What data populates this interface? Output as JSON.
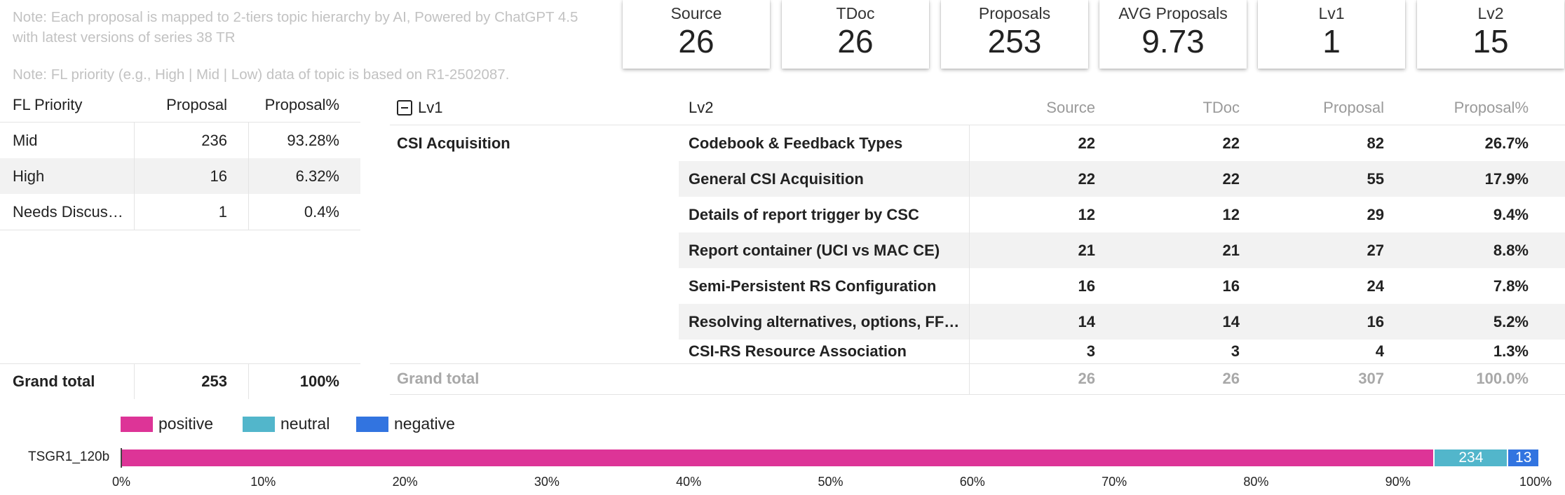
{
  "notes": {
    "line1": "Note: Each proposal is mapped to 2-tiers topic hierarchy by AI, Powered by ChatGPT 4.5 with latest versions of series 38 TR",
    "line2": "Note: FL priority (e.g., High | Mid | Low) data of topic is based on R1-2502087."
  },
  "kpis": [
    {
      "label": "Source",
      "value": "26"
    },
    {
      "label": "TDoc",
      "value": "26"
    },
    {
      "label": "Proposals",
      "value": "253"
    },
    {
      "label": "AVG Proposals",
      "value": "9.73"
    },
    {
      "label": "Lv1",
      "value": "1"
    },
    {
      "label": "Lv2",
      "value": "15"
    }
  ],
  "fl_table": {
    "headers": [
      "FL Priority",
      "Proposal",
      "Proposal%"
    ],
    "rows": [
      [
        "Mid",
        "236",
        "93.28%"
      ],
      [
        "High",
        "16",
        "6.32%"
      ],
      [
        "Needs Discus…",
        "1",
        "0.4%"
      ]
    ],
    "total": [
      "Grand total",
      "253",
      "100%"
    ]
  },
  "topic_table": {
    "headers": [
      "Lv1",
      "Lv2",
      "Source",
      "TDoc",
      "Proposal",
      "Proposal%"
    ],
    "lv1_group": "CSI Acquisition",
    "rows": [
      [
        "Codebook & Feedback Types",
        "22",
        "22",
        "82",
        "26.7%"
      ],
      [
        "General CSI Acquisition",
        "22",
        "22",
        "55",
        "17.9%"
      ],
      [
        "Details of report trigger by CSC",
        "12",
        "12",
        "29",
        "9.4%"
      ],
      [
        "Report container (UCI vs MAC CE)",
        "21",
        "21",
        "27",
        "8.8%"
      ],
      [
        "Semi-Persistent RS Configuration",
        "16",
        "16",
        "24",
        "7.8%"
      ],
      [
        "Resolving alternatives, options, FFS…",
        "14",
        "14",
        "16",
        "5.2%"
      ],
      [
        "CSI-RS Resource Association",
        "3",
        "3",
        "4",
        "1.3%"
      ]
    ],
    "total": [
      "Grand total",
      "26",
      "26",
      "307",
      "100.0%"
    ]
  },
  "legend": {
    "positive": "positive",
    "neutral": "neutral",
    "negative": "negative"
  },
  "colors": {
    "positive": "#dd3497",
    "neutral": "#52b6cb",
    "negative": "#3274e0"
  },
  "chart_data": {
    "type": "bar",
    "orientation": "horizontal",
    "stacked": "percent",
    "categories": [
      "TSGR1_120b"
    ],
    "series": [
      {
        "name": "positive",
        "values": [
          92.6
        ]
      },
      {
        "name": "neutral",
        "values": [
          5.2
        ]
      },
      {
        "name": "negative",
        "values": [
          2.2
        ]
      }
    ],
    "data_labels": [
      "",
      "234",
      "13"
    ],
    "xlim": [
      0,
      100
    ],
    "x_ticks": [
      "0%",
      "10%",
      "20%",
      "30%",
      "40%",
      "50%",
      "60%",
      "70%",
      "80%",
      "90%",
      "100%"
    ],
    "legend": "top-left",
    "grid": false
  }
}
